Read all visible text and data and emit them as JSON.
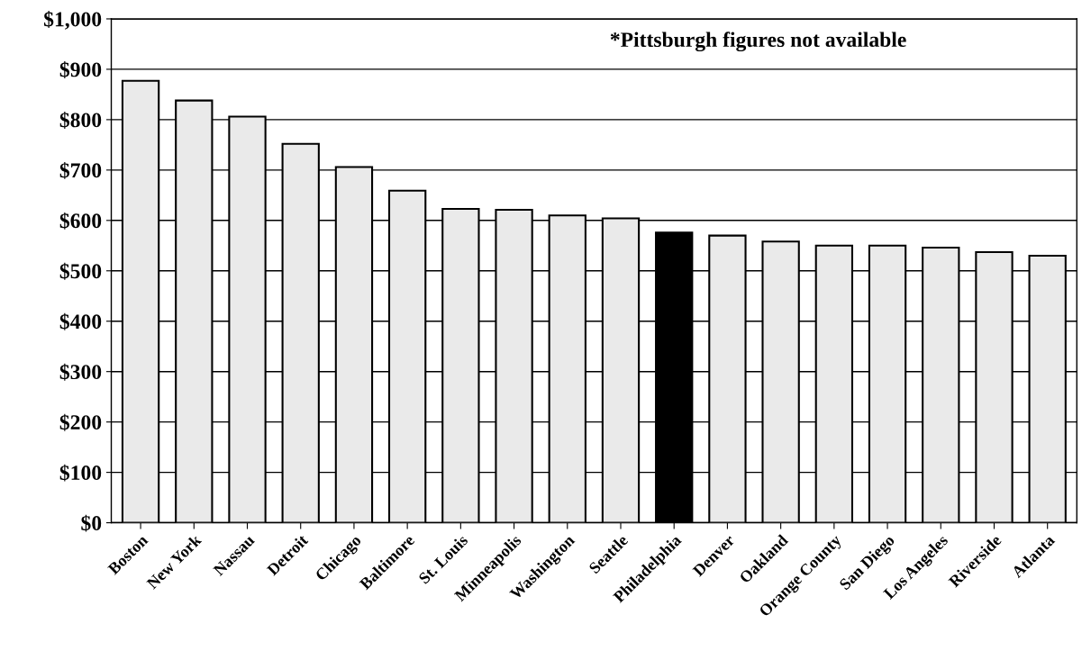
{
  "chart_data": {
    "type": "bar",
    "categories": [
      "Boston",
      "New York",
      "Nassau",
      "Detroit",
      "Chicago",
      "Baltimore",
      "St. Louis",
      "Minneapolis",
      "Washington",
      "Seattle",
      "Philadelphia",
      "Denver",
      "Oakland",
      "Orange County",
      "San Diego",
      "Los Angeles",
      "Riverside",
      "Atlanta"
    ],
    "values": [
      877,
      838,
      806,
      752,
      706,
      659,
      623,
      621,
      610,
      604,
      576,
      570,
      558,
      550,
      550,
      546,
      537,
      530
    ],
    "colors": [
      "#eaeaea",
      "#eaeaea",
      "#eaeaea",
      "#eaeaea",
      "#eaeaea",
      "#eaeaea",
      "#eaeaea",
      "#eaeaea",
      "#eaeaea",
      "#eaeaea",
      "#000000",
      "#eaeaea",
      "#eaeaea",
      "#eaeaea",
      "#eaeaea",
      "#eaeaea",
      "#eaeaea",
      "#eaeaea"
    ],
    "ylim": [
      0,
      1000
    ],
    "yticks": [
      {
        "value": 0,
        "label": "$0"
      },
      {
        "value": 100,
        "label": "$100"
      },
      {
        "value": 200,
        "label": "$200"
      },
      {
        "value": 300,
        "label": "$300"
      },
      {
        "value": 400,
        "label": "$400"
      },
      {
        "value": 500,
        "label": "$500"
      },
      {
        "value": 600,
        "label": "$600"
      },
      {
        "value": 700,
        "label": "$700"
      },
      {
        "value": 800,
        "label": "$800"
      },
      {
        "value": 900,
        "label": "$900"
      },
      {
        "value": 1000,
        "label": "$1,000"
      }
    ],
    "grid": "y",
    "annotations": [
      "*Pittsburgh figures not available"
    ]
  }
}
